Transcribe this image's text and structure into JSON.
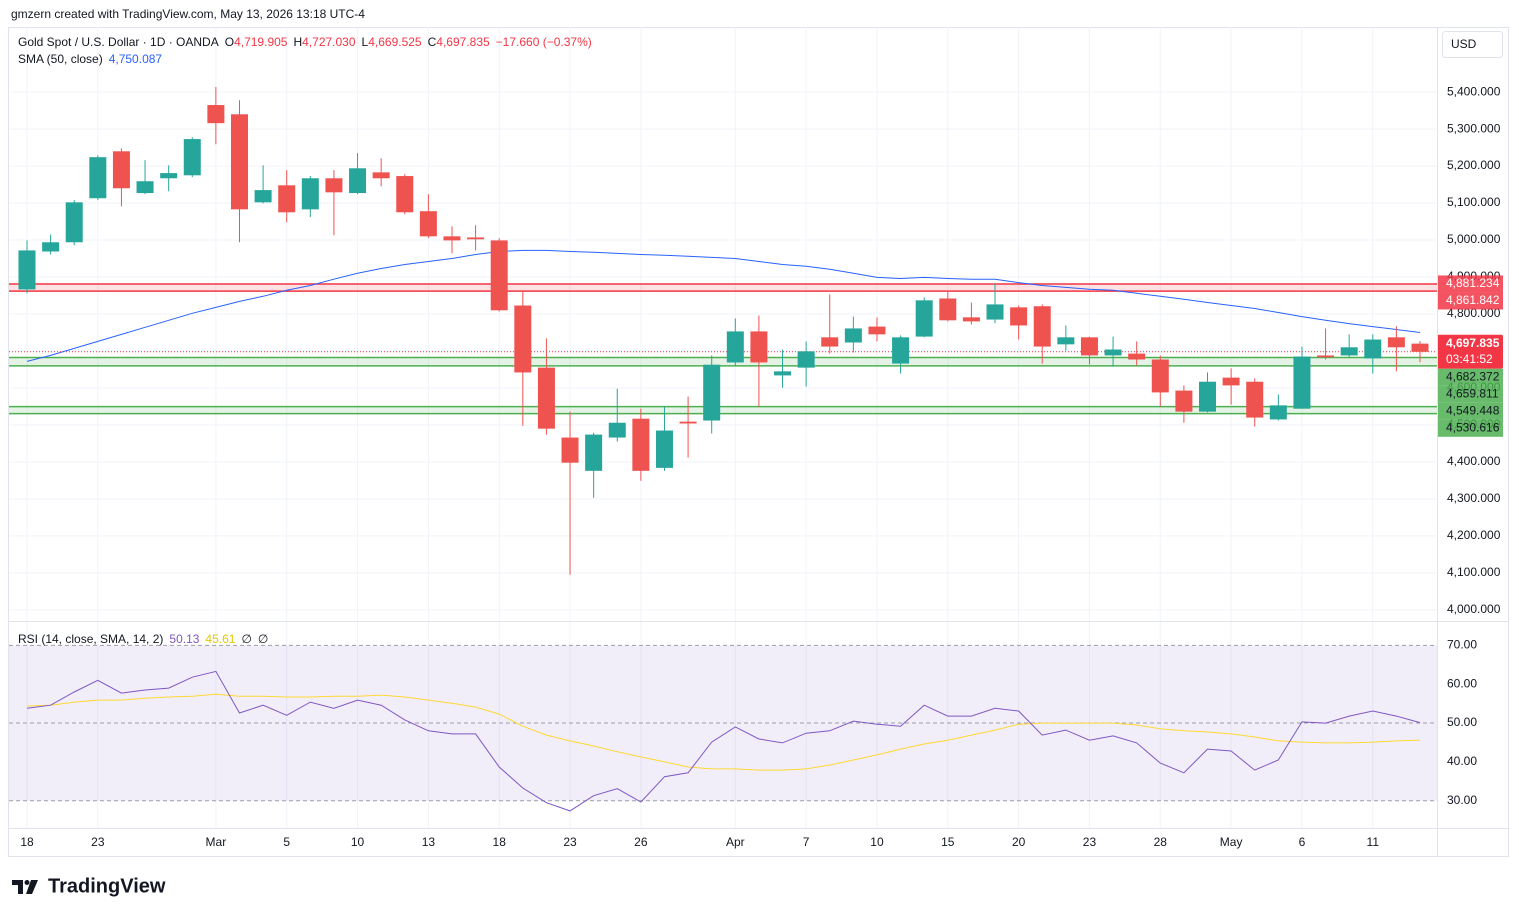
{
  "header": "gmzern created with TradingView.com, May 13, 2026 13:18 UTC-4",
  "footer": "TradingView",
  "chart_data": [
    {
      "type": "candlestick",
      "title": "Gold Spot / U.S. Dollar · 1D · OANDA",
      "currency": "USD",
      "legend": [
        {
          "key": "O",
          "value": "4,719.905"
        },
        {
          "key": "H",
          "value": "4,727.030"
        },
        {
          "key": "L",
          "value": "4,669.525"
        },
        {
          "key": "C",
          "value": "4,697.835"
        }
      ],
      "change": "−17.660 (−0.37%)",
      "categories": [
        "18",
        null,
        null,
        "23",
        null,
        null,
        null,
        null,
        "Mar",
        null,
        null,
        "5",
        null,
        null,
        "10",
        null,
        null,
        "13",
        null,
        null,
        "18",
        null,
        null,
        "23",
        null,
        null,
        "26",
        null,
        null,
        null,
        "Apr",
        null,
        null,
        "7",
        null,
        null,
        "10",
        null,
        null,
        "15",
        null,
        null,
        "20",
        null,
        null,
        "23",
        null,
        null,
        "28",
        null,
        null,
        "May",
        null,
        null,
        "6",
        null,
        null,
        "11",
        null,
        null
      ],
      "open": [
        4866.5,
        4969,
        4994,
        5113,
        5240,
        5127,
        5167,
        5175,
        5365,
        5340,
        5102,
        5148,
        5083,
        5167,
        5127,
        5183,
        5173,
        5078,
        5010,
        5007,
        4999,
        4823,
        4655,
        4466,
        4376,
        4466,
        4517,
        4384,
        4509,
        4512,
        4669,
        4753,
        4634,
        4655,
        4737,
        4723,
        4766,
        4666,
        4739,
        4842,
        4791,
        4785,
        4818,
        4821,
        4718,
        4737,
        4688,
        4693,
        4677,
        4593,
        4536,
        4628,
        4617,
        4515,
        4544,
        4688,
        4688,
        4680,
        4737,
        4719.905
      ],
      "high": [
        4999,
        5015,
        5108,
        5229,
        5248,
        5216,
        5202,
        5278,
        5414,
        5378,
        5202,
        5189,
        5173,
        5189,
        5235,
        5221,
        5178,
        5124,
        5037,
        5040,
        5005,
        4864,
        4734,
        4536,
        4479,
        4598,
        4544,
        4550,
        4577,
        4688,
        4788,
        4796,
        4704,
        4726,
        4853,
        4793,
        4791,
        4742,
        4845,
        4864,
        4831,
        4883,
        4823,
        4826,
        4769,
        4739,
        4739,
        4726,
        4688,
        4607,
        4642,
        4653,
        4626,
        4582,
        4712,
        4761,
        4745,
        4745,
        4767,
        4727.03
      ],
      "low": [
        4856,
        4961,
        4986,
        5108,
        5091,
        5124,
        5132,
        5170,
        5259,
        4994,
        5099,
        5048,
        5062,
        5013,
        5124,
        5145,
        5070,
        5005,
        4964,
        4972,
        4807,
        4498,
        4474,
        4095,
        4303,
        4455,
        4349,
        4376,
        4412,
        4477,
        4661,
        4550,
        4601,
        4604,
        4693,
        4696,
        4726,
        4639,
        4737,
        4780,
        4772,
        4775,
        4731,
        4666,
        4701,
        4664,
        4658,
        4661,
        4550,
        4506,
        4534,
        4555,
        4496,
        4512,
        4544,
        4677,
        4683,
        4639,
        4645,
        4669.525
      ],
      "close": [
        4972,
        4994,
        5102,
        5224,
        5140,
        5159,
        5181,
        5273,
        5316,
        5083,
        5135,
        5075,
        5167,
        5129,
        5194,
        5167,
        5075,
        5010,
        4999,
        5002,
        4810,
        4642,
        4490,
        4398,
        4474,
        4506,
        4376,
        4485,
        4504,
        4663,
        4753,
        4669,
        4645,
        4699,
        4712,
        4761,
        4745,
        4737,
        4837,
        4783,
        4780,
        4826,
        4769,
        4712,
        4737,
        4688,
        4704,
        4677,
        4588,
        4536,
        4617,
        4607,
        4520,
        4553,
        4685,
        4683,
        4710,
        4731,
        4710,
        4697.835
      ],
      "up_color": "#26a69a",
      "down_color": "#ef5350",
      "sma": {
        "name": "SMA (50, close)",
        "value_label": "4,750.087",
        "color": "#2962ff",
        "values": [
          4672,
          4688,
          4707,
          4726,
          4745,
          4764,
          4783,
          4802,
          4818,
          4834,
          4848,
          4864,
          4877,
          4894,
          4910,
          4923,
          4934,
          4942,
          4950,
          4961,
          4969,
          4972,
          4972,
          4969,
          4967,
          4964,
          4961,
          4959,
          4956,
          4953,
          4950,
          4942,
          4934,
          4929,
          4921,
          4910,
          4899,
          4896,
          4899,
          4896,
          4894,
          4894,
          4885,
          4877,
          4872,
          4867,
          4864,
          4856,
          4848,
          4840,
          4831,
          4823,
          4815,
          4804,
          4793,
          4783,
          4774,
          4766,
          4758,
          4750.087
        ]
      },
      "zones": [
        {
          "color": "#f23645",
          "label_text_color": "#ffffff",
          "levels": [
            {
              "value": 4881.234,
              "label": "4,881.234"
            },
            {
              "value": 4861.842,
              "label": "4,861.842"
            }
          ]
        },
        {
          "color": "#4caf50",
          "label_text_color": "#131722",
          "levels": [
            {
              "value": 4682.372,
              "label": "4,682.372"
            },
            {
              "value": 4659.811,
              "label": "4,659.811"
            }
          ]
        },
        {
          "color": "#4caf50",
          "label_text_color": "#131722",
          "levels": [
            {
              "value": 4549.448,
              "label": "4,549.448"
            },
            {
              "value": 4530.616,
              "label": "4,530.616"
            }
          ]
        }
      ],
      "last_price": {
        "value": 4697.835,
        "label": "4,697.835",
        "countdown": "03:41:52",
        "color": "#f23645"
      },
      "ylim": [
        3970,
        5576
      ],
      "yticks": [
        {
          "value": 4000,
          "label": "4,000.000"
        },
        {
          "value": 4100,
          "label": "4,100.000"
        },
        {
          "value": 4200,
          "label": "4,200.000"
        },
        {
          "value": 4300,
          "label": "4,300.000"
        },
        {
          "value": 4400,
          "label": "4,400.000"
        },
        {
          "value": 4500,
          "label": "4,500.000"
        },
        {
          "value": 4600,
          "label": "4,600.000"
        },
        {
          "value": 4700,
          "label": "4,700.000"
        },
        {
          "value": 4800,
          "label": "4,800.000"
        },
        {
          "value": 4900,
          "label": "4,900.000"
        },
        {
          "value": 5000,
          "label": "5,000.000"
        },
        {
          "value": 5100,
          "label": "5,100.000"
        },
        {
          "value": 5200,
          "label": "5,200.000"
        },
        {
          "value": 5300,
          "label": "5,300.000"
        },
        {
          "value": 5400,
          "label": "5,400.000"
        }
      ],
      "grid": true
    },
    {
      "type": "line",
      "title": "RSI (14, close, SMA, 14, 2)",
      "extras": [
        "∅",
        "∅"
      ],
      "series": [
        {
          "name": "RSI",
          "color": "#7e57c2",
          "value_label": "50.13",
          "values": [
            53.8,
            54.6,
            58,
            61,
            57.7,
            58.5,
            59,
            61.8,
            63.3,
            52.6,
            54.6,
            52,
            55.4,
            53.8,
            55.9,
            54.6,
            50.8,
            48,
            47.2,
            47.2,
            38.7,
            33.3,
            29.5,
            27.4,
            31.3,
            33.1,
            29.7,
            36.2,
            37.2,
            45.1,
            49,
            45.9,
            44.9,
            47.4,
            48,
            50.5,
            49.7,
            49.2,
            54.6,
            51.8,
            51.8,
            53.8,
            53.1,
            46.9,
            48.2,
            45.6,
            46.7,
            44.9,
            39.7,
            37.2,
            43.3,
            42.8,
            37.9,
            40.5,
            50.3,
            50,
            51.8,
            53.1,
            51.8,
            50.13
          ]
        },
        {
          "name": "RSI-based MA",
          "color": "#fdd835",
          "value_label": "45.61",
          "values": [
            54.4,
            54.6,
            55.4,
            55.9,
            55.9,
            56.4,
            56.7,
            56.9,
            57.4,
            56.9,
            56.9,
            56.7,
            56.7,
            56.9,
            56.9,
            57.2,
            56.7,
            55.9,
            55.1,
            54.1,
            52.3,
            49.2,
            46.9,
            45.4,
            44.1,
            42.6,
            41.3,
            40,
            38.7,
            38.2,
            38.2,
            37.9,
            37.9,
            38.2,
            39.2,
            40.5,
            41.8,
            43.3,
            44.6,
            45.6,
            46.9,
            48.2,
            49.7,
            50,
            50,
            50,
            50,
            49.5,
            48.5,
            48,
            47.7,
            47.2,
            46.4,
            45.4,
            45.1,
            44.9,
            44.9,
            45.1,
            45.4,
            45.61
          ]
        }
      ],
      "band": {
        "upper": 70,
        "middle": 50,
        "lower": 30,
        "color": "#7e57c2"
      },
      "ylim": [
        23,
        76
      ],
      "yticks": [
        {
          "value": 30,
          "label": "30.00"
        },
        {
          "value": 40,
          "label": "40.00"
        },
        {
          "value": 50,
          "label": "50.00"
        },
        {
          "value": 60,
          "label": "60.00"
        },
        {
          "value": 70,
          "label": "70.00"
        }
      ]
    }
  ]
}
